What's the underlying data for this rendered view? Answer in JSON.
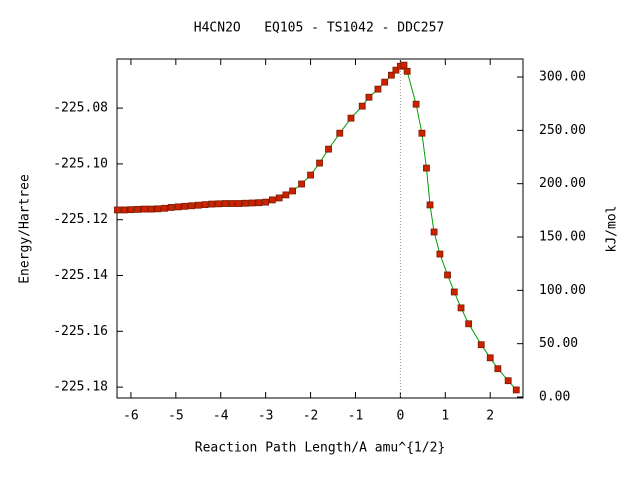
{
  "chart_data": {
    "type": "line",
    "title": "H4CN2O   EQ105 - TS1042 - DDC257",
    "xlabel": "Reaction Path Length/A amu^{1/2}",
    "ylabel": "Energy/Hartree",
    "y2label": "kJ/mol",
    "x": [
      -6.3,
      -6.15,
      -6.0,
      -5.85,
      -5.7,
      -5.55,
      -5.4,
      -5.25,
      -5.1,
      -4.95,
      -4.8,
      -4.65,
      -4.5,
      -4.35,
      -4.2,
      -4.05,
      -3.9,
      -3.75,
      -3.6,
      -3.45,
      -3.3,
      -3.15,
      -3.0,
      -2.85,
      -2.7,
      -2.55,
      -2.4,
      -2.2,
      -2.0,
      -1.8,
      -1.6,
      -1.35,
      -1.1,
      -0.85,
      -0.7,
      -0.5,
      -0.35,
      -0.2,
      -0.1,
      0.0,
      0.08,
      0.15,
      0.35,
      0.48,
      0.58,
      0.66,
      0.75,
      0.88,
      1.05,
      1.2,
      1.35,
      1.52,
      1.8,
      2.0,
      2.17,
      2.4,
      2.58
    ],
    "series": [
      {
        "name": "Energy",
        "color": "#00a000",
        "marker_color": "#cc2200",
        "values": [
          -225.1165,
          -225.1165,
          -225.1164,
          -225.1163,
          -225.1162,
          -225.1162,
          -225.1161,
          -225.1159,
          -225.1156,
          -225.1154,
          -225.1152,
          -225.115,
          -225.1148,
          -225.1146,
          -225.1144,
          -225.1143,
          -225.1142,
          -225.1142,
          -225.1142,
          -225.1141,
          -225.114,
          -225.1139,
          -225.1137,
          -225.1129,
          -225.1122,
          -225.1111,
          -225.1097,
          -225.1072,
          -225.104,
          -225.0997,
          -225.0947,
          -225.089,
          -225.0836,
          -225.0793,
          -225.0761,
          -225.0732,
          -225.0707,
          -225.0682,
          -225.0664,
          -225.065,
          -225.0646,
          -225.0668,
          -225.0786,
          -225.089,
          -225.1015,
          -225.1147,
          -225.1244,
          -225.1323,
          -225.1398,
          -225.1459,
          -225.1516,
          -225.1573,
          -225.1648,
          -225.1695,
          -225.1734,
          -225.1777,
          -225.181
        ]
      }
    ],
    "xlim": [
      -6.31,
      2.73
    ],
    "xticks": [
      -6,
      -5,
      -4,
      -3,
      -2,
      -1,
      0,
      1,
      2
    ],
    "ylim": [
      -225.1839,
      -225.0624
    ],
    "yticks": [
      {
        "value": -225.18,
        "label": "-225.18"
      },
      -225.16,
      -225.14,
      -225.12,
      {
        "value": -225.1,
        "label": "-225.10"
      },
      -225.08
    ],
    "y2lim": [
      -0.94,
      316.9
    ],
    "y2ticks": [
      {
        "value": 0,
        "label": "0.00"
      },
      {
        "value": 50,
        "label": "50.00"
      },
      {
        "value": 100,
        "label": "100.00"
      },
      {
        "value": 150,
        "label": "150.00"
      },
      {
        "value": 200,
        "label": "200.00"
      },
      {
        "value": 250,
        "label": "250.00"
      },
      {
        "value": 300,
        "label": "300.00"
      }
    ],
    "vline": 0
  }
}
